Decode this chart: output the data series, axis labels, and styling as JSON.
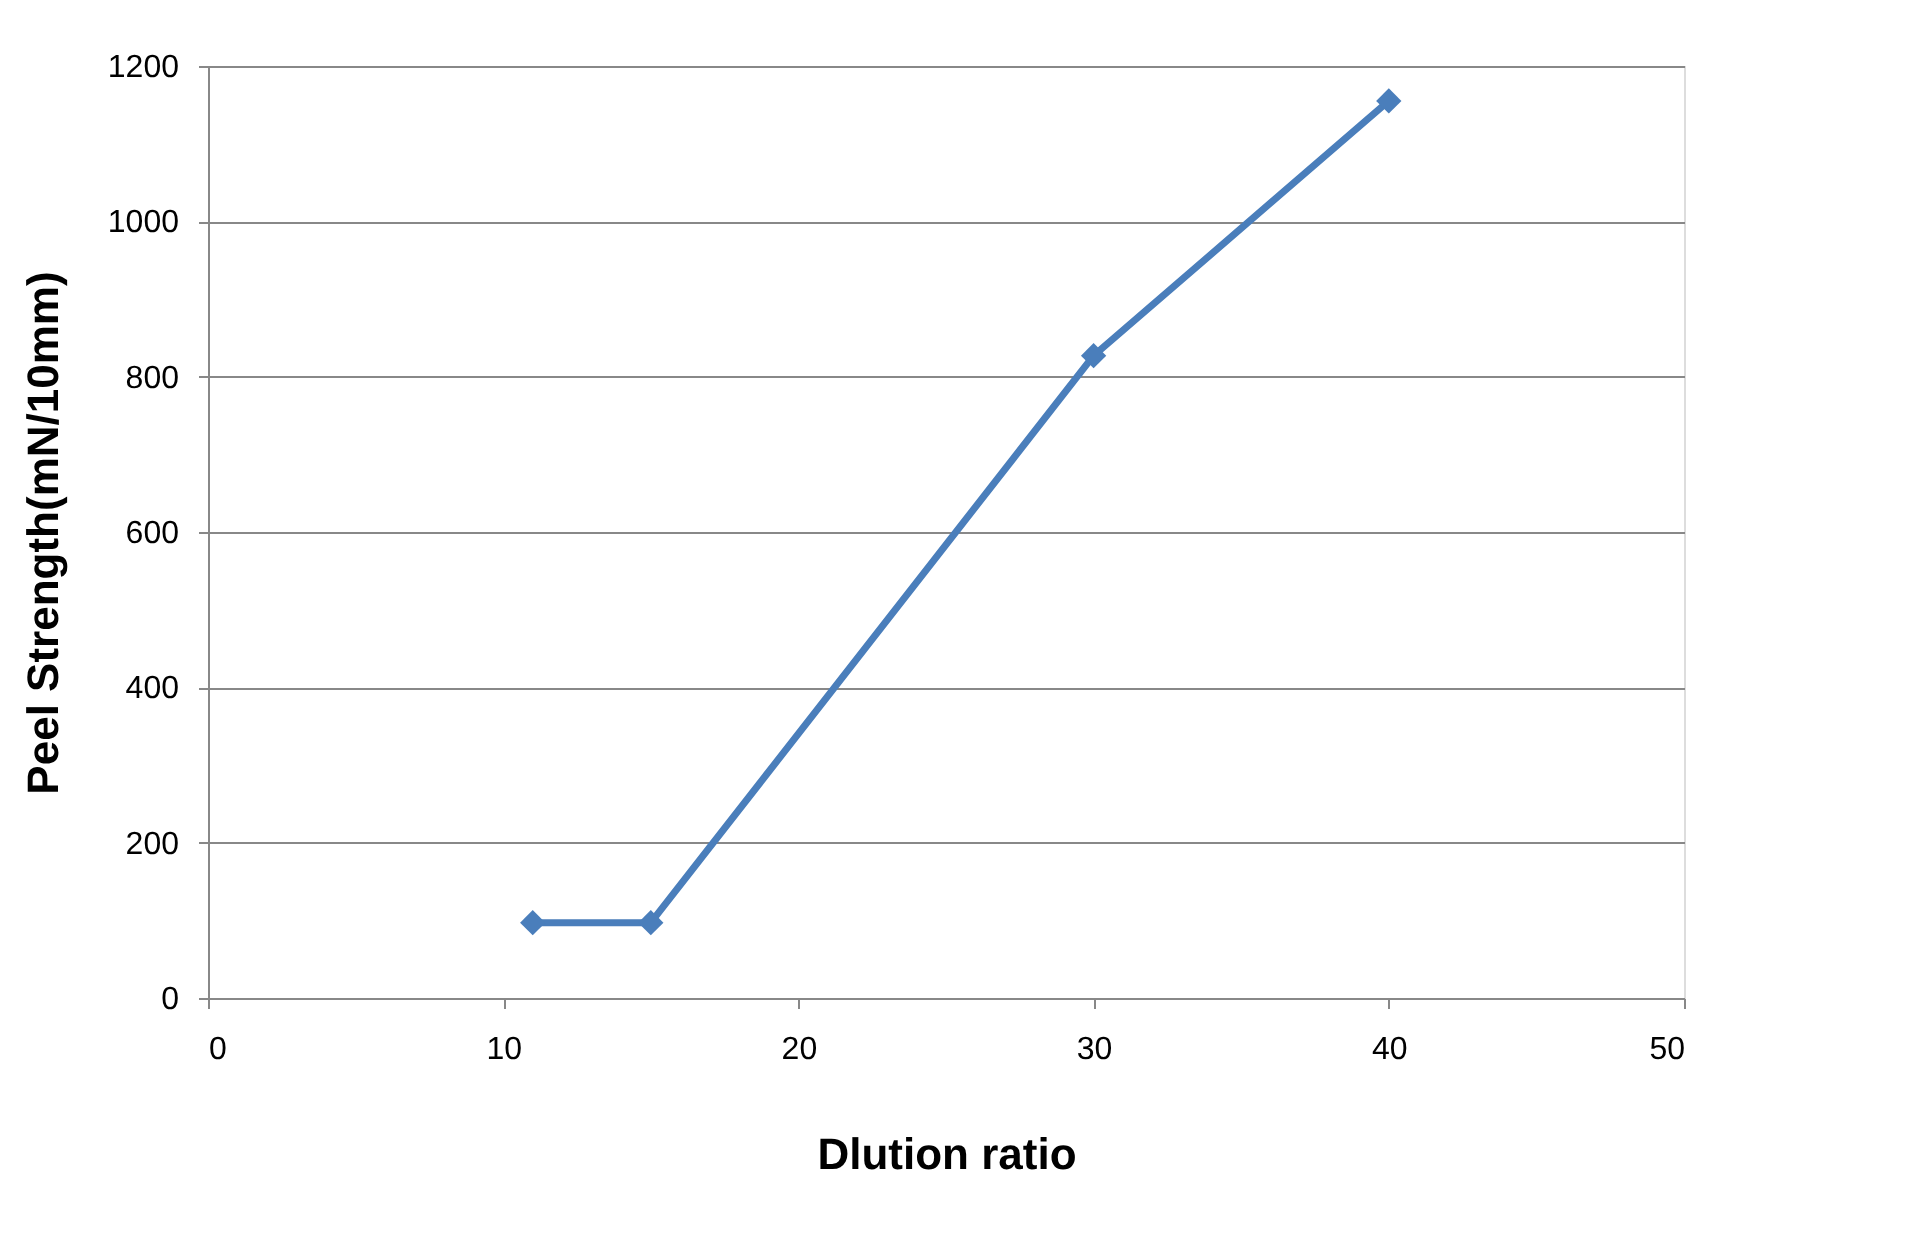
{
  "chart_data": {
    "type": "line",
    "xlabel": "Dlution ratio",
    "ylabel": "Peel Strength(mN/10mm)",
    "x": [
      11,
      15,
      30,
      40
    ],
    "series": [
      {
        "color": "#4a7ebb",
        "values": [
          97,
          97,
          827,
          1155
        ]
      }
    ],
    "xlim": [
      0,
      50
    ],
    "xticks": [
      0,
      10,
      20,
      30,
      40,
      50
    ],
    "ylim": [
      0,
      1200
    ],
    "yticks": [
      0,
      200,
      400,
      600,
      800,
      1000,
      1200
    ],
    "grid": "y",
    "marker": "diamond",
    "line_style": "solid"
  }
}
